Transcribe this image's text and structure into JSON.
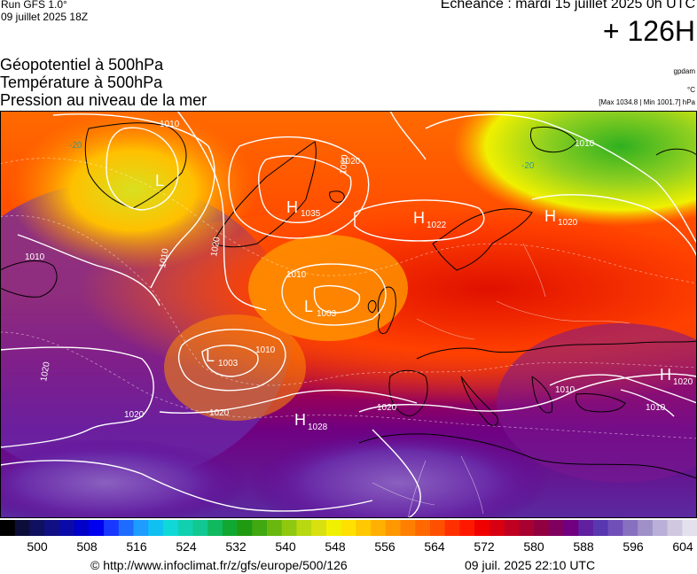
{
  "header": {
    "run_label": "Run GFS 1.0°",
    "run_date": "09 juillet 2025 18Z",
    "echeance": "Echéance : mardi 15 juillet 2025 0h UTC",
    "lead_time": "+ 126H"
  },
  "titles": {
    "line1": "Géopotentiel à 500hPa",
    "line2": "Température à 500hPa",
    "line3": "Pression au niveau de la mer"
  },
  "units": {
    "geopotential": "gpdam",
    "temperature": "°C",
    "pressure_range": "[Max 1034.8 | Min 1001.7] hPa"
  },
  "pressure_centers": [
    {
      "type": "H",
      "value": "1035"
    },
    {
      "type": "H",
      "value": "1022"
    },
    {
      "type": "H",
      "value": "1020"
    },
    {
      "type": "L",
      "value": "1003"
    },
    {
      "type": "L",
      "value": "1003"
    },
    {
      "type": "H",
      "value": "1028"
    },
    {
      "type": "H",
      "value": "1020"
    },
    {
      "type": "L",
      "value": ""
    }
  ],
  "isobar_labels": [
    "1010",
    "1020",
    "1010",
    "1020",
    "1010",
    "1010",
    "1020",
    "1010",
    "1020",
    "1020",
    "1010",
    "1010",
    "1010",
    "1020",
    "1020"
  ],
  "temp_labels": [
    "-20",
    "-20"
  ],
  "colorbar": {
    "palette": [
      "#000000",
      "#0d0d3a",
      "#101060",
      "#101084",
      "#0a0aa8",
      "#0000c8",
      "#0000f0",
      "#1838ff",
      "#1e6cff",
      "#1e9cff",
      "#10c0f0",
      "#10d8d8",
      "#10d0b0",
      "#10c890",
      "#10b860",
      "#10a830",
      "#209a10",
      "#40a810",
      "#68b810",
      "#90c810",
      "#b8d810",
      "#d8e010",
      "#f0f000",
      "#ffe000",
      "#ffc800",
      "#ffb000",
      "#ff9800",
      "#ff8000",
      "#ff6800",
      "#ff5000",
      "#ff3000",
      "#ff1800",
      "#f00000",
      "#d80010",
      "#c00020",
      "#a80030",
      "#900040",
      "#800060",
      "#700080",
      "#6020a0",
      "#5838b0",
      "#7050b8",
      "#8870c0",
      "#a090c8",
      "#b8b0d8",
      "#d0c8e0",
      "#e4e0ec"
    ],
    "ticks": [
      "500",
      "508",
      "516",
      "524",
      "532",
      "540",
      "548",
      "556",
      "564",
      "572",
      "580",
      "588",
      "596",
      "604"
    ]
  },
  "footer": {
    "url": "© http://www.infoclimat.fr/z/gfs/europe/500/126",
    "generated": "09 juil. 2025 22:10 UTC"
  }
}
